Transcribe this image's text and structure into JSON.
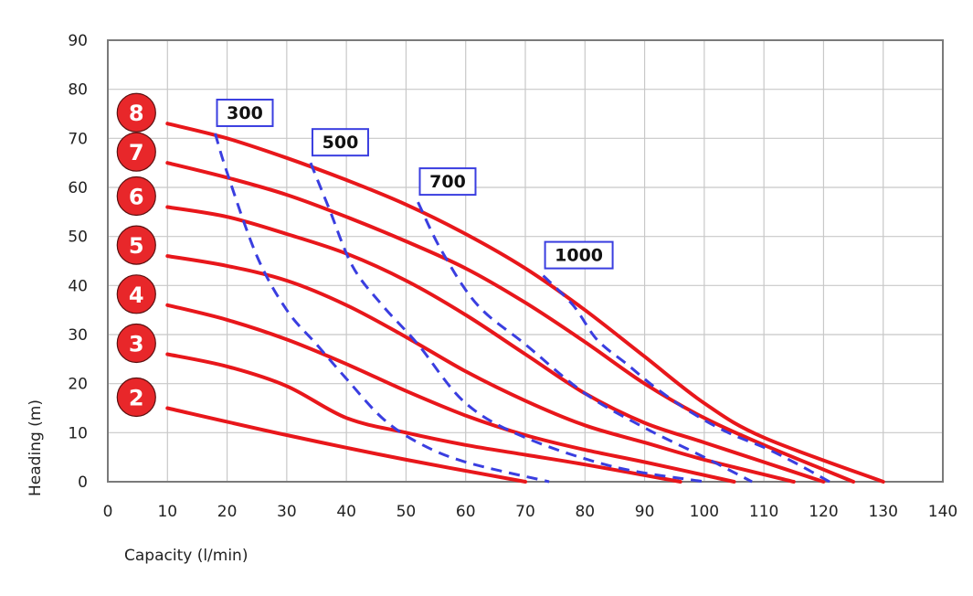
{
  "chart_data": {
    "type": "line",
    "xlabel": "Capacity (l/min)",
    "ylabel": "Heading (m)",
    "xlim": [
      0,
      140
    ],
    "ylim": [
      0,
      90
    ],
    "xticks": [
      "0",
      "10",
      "20",
      "30",
      "40",
      "50",
      "60",
      "70",
      "80",
      "90",
      "100",
      "110",
      "120",
      "130",
      "140"
    ],
    "yticks": [
      "0",
      "10",
      "20",
      "30",
      "40",
      "50",
      "60",
      "70",
      "80",
      "90"
    ],
    "grid": true,
    "colors": {
      "stage_curve": "#e8171b",
      "power_curve": "#3a3ee0",
      "badge": "#e8272a",
      "grid": "#c8c8c8",
      "frame": "#7a7a7a"
    },
    "stage_curves": [
      {
        "name": "2",
        "x": [
          10,
          30,
          50,
          70
        ],
        "y": [
          15,
          9.5,
          4.5,
          0
        ]
      },
      {
        "name": "3",
        "x": [
          10,
          20,
          30,
          40,
          50,
          60,
          70,
          80,
          96
        ],
        "y": [
          26,
          23.5,
          19.5,
          13,
          10,
          7.5,
          5.5,
          3.5,
          0
        ]
      },
      {
        "name": "4",
        "x": [
          10,
          20,
          30,
          40,
          50,
          60,
          70,
          80,
          90,
          105
        ],
        "y": [
          36,
          33,
          29,
          24,
          18.5,
          13.5,
          9.5,
          6.5,
          4,
          0
        ]
      },
      {
        "name": "5",
        "x": [
          10,
          20,
          30,
          40,
          50,
          60,
          70,
          80,
          90,
          100,
          115
        ],
        "y": [
          46,
          44,
          41,
          36,
          29.5,
          22.5,
          16.5,
          11.5,
          8,
          4.5,
          0
        ]
      },
      {
        "name": "6",
        "x": [
          10,
          20,
          30,
          40,
          50,
          60,
          70,
          80,
          90,
          100,
          110,
          120
        ],
        "y": [
          56,
          54,
          50.5,
          46.5,
          41,
          34,
          26,
          18,
          12,
          8,
          4,
          0
        ]
      },
      {
        "name": "7",
        "x": [
          10,
          20,
          30,
          40,
          50,
          60,
          70,
          80,
          90,
          100,
          110,
          125
        ],
        "y": [
          65,
          62,
          58.5,
          54,
          49,
          43.5,
          36.5,
          28.5,
          20,
          13,
          7.5,
          0
        ]
      },
      {
        "name": "8",
        "x": [
          10,
          20,
          30,
          40,
          50,
          60,
          70,
          80,
          90,
          100,
          110,
          130
        ],
        "y": [
          73,
          70,
          66,
          61.5,
          56.5,
          50.5,
          43.5,
          35,
          25.5,
          16,
          9,
          0
        ]
      }
    ],
    "power_curves": [
      {
        "label": "300",
        "x": [
          18,
          20,
          25,
          30,
          35,
          40,
          46,
          52,
          60,
          74
        ],
        "y": [
          71,
          63,
          46,
          35,
          28,
          21,
          13,
          8,
          4,
          0
        ]
      },
      {
        "label": "500",
        "x": [
          34,
          37,
          41,
          46,
          52,
          60,
          70,
          85,
          100
        ],
        "y": [
          65,
          56,
          44,
          36,
          28,
          16,
          9,
          3,
          0
        ]
      },
      {
        "label": "700",
        "x": [
          52,
          56,
          62,
          70,
          80,
          90,
          100,
          108
        ],
        "y": [
          57,
          47,
          36,
          28,
          18,
          11,
          5,
          0
        ]
      },
      {
        "label": "1000",
        "x": [
          73,
          78,
          82,
          87,
          92,
          98,
          104,
          110,
          115,
          121
        ],
        "y": [
          42,
          36,
          29,
          24,
          19,
          14,
          10,
          7,
          4,
          0
        ]
      }
    ]
  }
}
